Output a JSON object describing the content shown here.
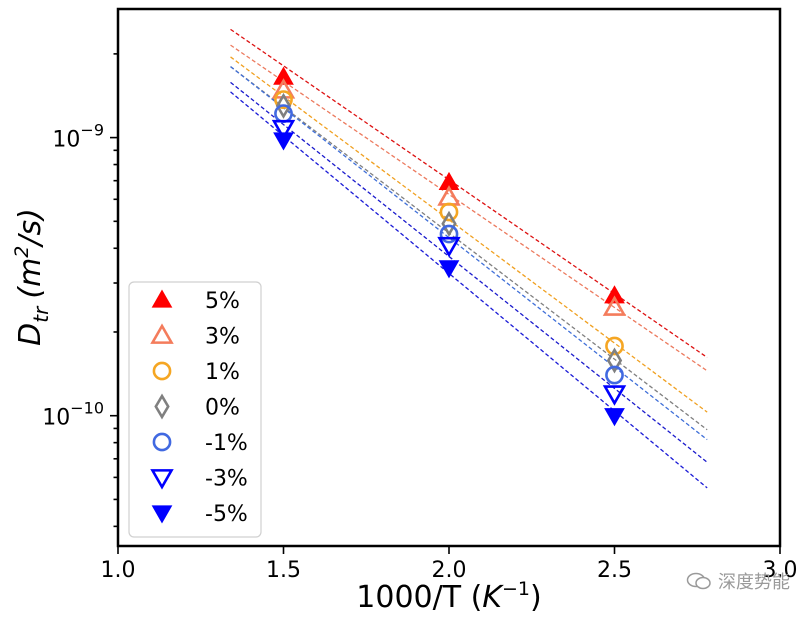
{
  "chart_data": {
    "type": "scatter",
    "xlabel": "1000/T (K⁻¹)",
    "ylabel": "Dtr (m²/s)",
    "ylabel_parts": {
      "symbol": "D",
      "subscript": "tr",
      "unit_pre": "(m",
      "unit_sup": "2",
      "unit_post": "/s)"
    },
    "xlabel_parts": {
      "main": "1000/T (",
      "italic": "K",
      "sup": "−1",
      "post": ")"
    },
    "xlim": [
      1.0,
      3.0
    ],
    "ylim": [
      3.4e-11,
      2.9e-09
    ],
    "yscale": "log",
    "grid": false,
    "legend_position": "lower-left",
    "x_ticks": [
      1.0,
      1.5,
      2.0,
      2.5,
      3.0
    ],
    "x_tick_labels": [
      "1.0",
      "1.5",
      "2.0",
      "2.5",
      "3.0"
    ],
    "y_ticks": [
      1e-10,
      1e-09
    ],
    "y_tick_labels": [
      {
        "base": "10",
        "exp": "−10"
      },
      {
        "base": "10",
        "exp": "−9"
      }
    ],
    "fit_line_x_range": [
      1.34,
      2.78
    ],
    "series": [
      {
        "name": "5%",
        "marker": "triangle-up-filled",
        "color": "#ff0000",
        "line_color": "#dd1111",
        "x": [
          1.5,
          2.0,
          2.5
        ],
        "y": [
          1.65e-09,
          6.9e-10,
          2.7e-10
        ]
      },
      {
        "name": "3%",
        "marker": "triangle-up-open",
        "color": "#f47c5c",
        "line_color": "#ec7a5e",
        "x": [
          1.5,
          2.0,
          2.5
        ],
        "y": [
          1.48e-09,
          6.1e-10,
          2.45e-10
        ]
      },
      {
        "name": "1%",
        "marker": "circle-open",
        "color": "#f5a623",
        "line_color": "#f0a020",
        "x": [
          1.5,
          2.0,
          2.5
        ],
        "y": [
          1.37e-09,
          5.4e-10,
          1.78e-10
        ]
      },
      {
        "name": "0%",
        "marker": "diamond-open",
        "color": "#808080",
        "line_color": "#7f7f7f",
        "x": [
          1.5,
          2.0,
          2.5
        ],
        "y": [
          1.3e-09,
          4.9e-10,
          1.58e-10
        ]
      },
      {
        "name": "-1%",
        "marker": "circle-open",
        "color": "#4169e1",
        "line_color": "#3f6fd8",
        "x": [
          1.5,
          2.0,
          2.5
        ],
        "y": [
          1.22e-09,
          4.5e-10,
          1.4e-10
        ]
      },
      {
        "name": "-3%",
        "marker": "triangle-down-open",
        "color": "#0000ff",
        "line_color": "#1a1acc",
        "x": [
          1.5,
          2.0,
          2.5
        ],
        "y": [
          1.08e-09,
          4.1e-10,
          1.2e-10
        ]
      },
      {
        "name": "-5%",
        "marker": "triangle-down-filled",
        "color": "#0000ff",
        "line_color": "#1a1ad6",
        "x": [
          1.5,
          2.0,
          2.5
        ],
        "y": [
          9.8e-10,
          3.4e-10,
          1e-10
        ]
      }
    ],
    "fit_lines": [
      {
        "series": "5%",
        "y_at_start": 2.45e-09,
        "y_at_end": 1.62e-10
      },
      {
        "series": "3%",
        "y_at_start": 2.15e-09,
        "y_at_end": 1.45e-10
      },
      {
        "series": "1%",
        "y_at_start": 1.95e-09,
        "y_at_end": 1.03e-10
      },
      {
        "series": "0%",
        "y_at_start": 1.8e-09,
        "y_at_end": 8.9e-11
      },
      {
        "series": "-1%",
        "y_at_start": 1.8e-09,
        "y_at_end": 8.2e-11
      },
      {
        "series": "-3%",
        "y_at_start": 1.58e-09,
        "y_at_end": 6.8e-11
      },
      {
        "series": "-5%",
        "y_at_start": 1.46e-09,
        "y_at_end": 5.5e-11
      }
    ]
  },
  "watermark": {
    "text": "深度势能",
    "icon": "wechat-icon"
  }
}
